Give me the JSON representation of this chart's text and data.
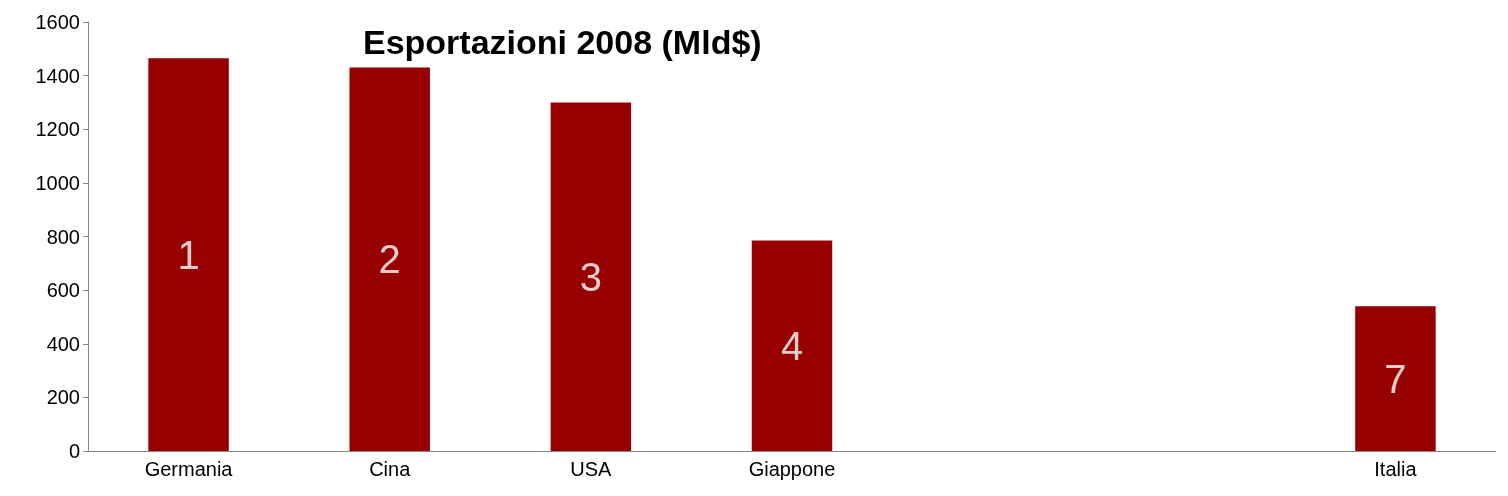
{
  "chart_data": {
    "type": "bar",
    "title": "Esportazioni 2008 (Mld$)",
    "categories": [
      "Germania",
      "Cina",
      "USA",
      "Giappone",
      null,
      null,
      "Italia"
    ],
    "values": [
      1465,
      1430,
      1300,
      785,
      null,
      null,
      540
    ],
    "annotations": [
      "1",
      "2",
      "3",
      "4",
      "7"
    ],
    "color": "#960000",
    "ylim": [
      0,
      1600
    ],
    "yticks": [
      0,
      200,
      400,
      600,
      800,
      1000,
      1200,
      1400,
      1600
    ],
    "grid": false
  }
}
